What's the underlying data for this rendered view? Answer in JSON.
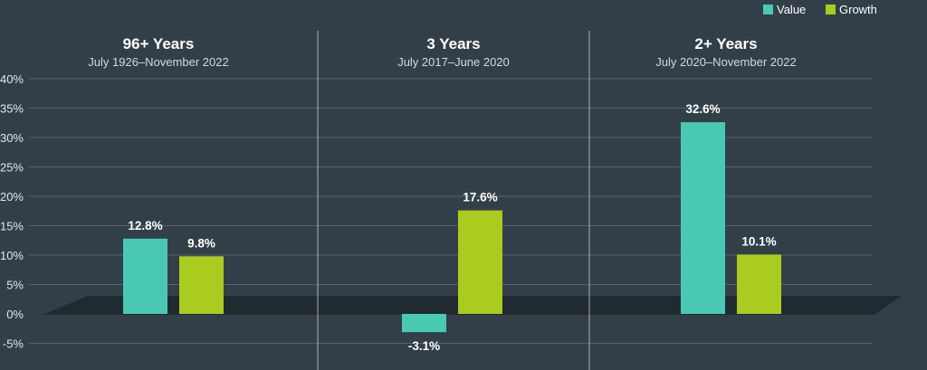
{
  "chart_data": {
    "type": "bar",
    "title": "",
    "xlabel": "",
    "ylabel": "",
    "ylim": [
      -8,
      40
    ],
    "yticks": [
      -5,
      0,
      5,
      10,
      15,
      20,
      25,
      30,
      35,
      40
    ],
    "ytick_labels": [
      "-5%",
      "0%",
      "5%",
      "10%",
      "15%",
      "20%",
      "25%",
      "30%",
      "35%",
      "40%"
    ],
    "grid": true,
    "legend_position": "top-right",
    "series": [
      {
        "name": "Value",
        "color": "#49c9b3",
        "values": [
          12.8,
          -3.1,
          32.6
        ]
      },
      {
        "name": "Growth",
        "color": "#a9cc1f",
        "values": [
          9.8,
          17.6,
          10.1
        ]
      }
    ],
    "panels": [
      {
        "title": "96+ Years",
        "subtitle": "July 1926–November 2022",
        "value_labels": [
          "12.8%",
          "9.8%"
        ]
      },
      {
        "title": "3 Years",
        "subtitle": "July 2017–June 2020",
        "value_labels": [
          "-3.1%",
          "17.6%"
        ]
      },
      {
        "title": "2+ Years",
        "subtitle": "July 2020–November 2022",
        "value_labels": [
          "32.6%",
          "10.1%"
        ]
      }
    ]
  }
}
